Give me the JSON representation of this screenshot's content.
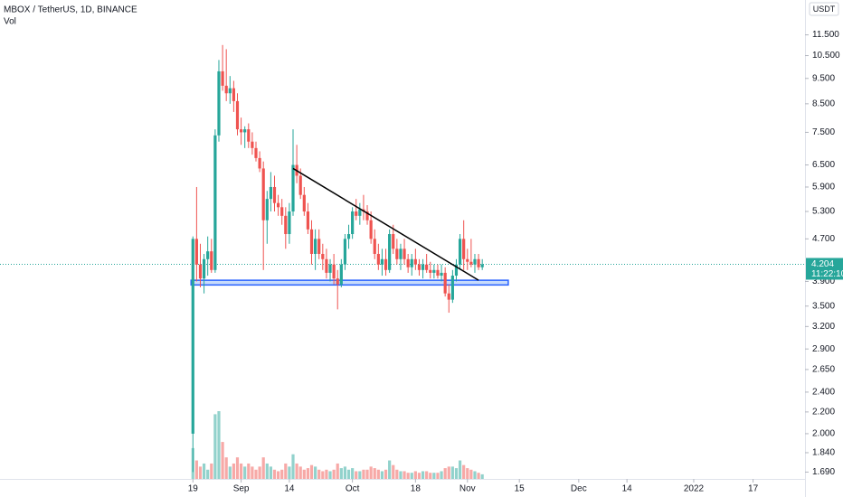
{
  "chart_data": {
    "type": "candlestick",
    "title": "MBOX / TetherUS, 1D, BINANCE",
    "volume_label": "Vol",
    "currency": "USDT",
    "log_scale": true,
    "up_color": "#26a69a",
    "down_color": "#ef5350",
    "x": [
      0,
      1,
      2,
      3,
      4,
      5,
      6,
      7,
      8,
      9,
      10,
      11,
      12,
      13,
      14,
      15,
      16,
      17,
      18,
      19,
      20,
      21,
      22,
      23,
      24,
      25,
      26,
      27,
      28,
      29,
      30,
      31,
      32,
      33,
      34,
      35,
      36,
      37,
      38,
      39,
      40,
      41,
      42,
      43,
      44,
      45,
      46,
      47,
      48,
      49,
      50,
      51,
      52,
      53,
      54,
      55,
      56,
      57,
      58,
      59,
      60,
      61,
      62,
      63,
      64,
      65,
      66,
      67,
      68,
      69,
      70,
      71,
      72,
      73,
      74,
      75,
      76,
      77,
      78
    ],
    "open": [
      2.0,
      4.7,
      4.2,
      3.95,
      4.3,
      4.45,
      4.1,
      7.4,
      9.8,
      9.2,
      8.9,
      9.1,
      8.6,
      7.6,
      7.5,
      7.6,
      7.2,
      7.0,
      6.7,
      6.4,
      5.1,
      5.6,
      5.9,
      5.5,
      5.4,
      5.2,
      4.8,
      5.3,
      6.5,
      6.2,
      5.7,
      5.3,
      4.9,
      4.4,
      4.7,
      4.4,
      4.3,
      4.05,
      4.2,
      3.95,
      3.85,
      4.2,
      4.7,
      4.8,
      5.3,
      5.2,
      5.35,
      5.3,
      5.1,
      4.7,
      4.4,
      4.2,
      4.3,
      4.1,
      4.8,
      4.5,
      4.3,
      4.5,
      4.3,
      4.15,
      4.3,
      4.2,
      4.1,
      4.2,
      4.1,
      4.05,
      4.1,
      4.0,
      4.05,
      3.7,
      3.6,
      4.0,
      4.2,
      4.7,
      4.3,
      4.25,
      4.2,
      4.3,
      4.15
    ],
    "high": [
      4.75,
      5.9,
      4.6,
      4.4,
      4.75,
      4.7,
      7.6,
      10.3,
      11.0,
      10.8,
      9.6,
      9.4,
      8.9,
      8.0,
      7.7,
      7.8,
      7.5,
      7.2,
      6.9,
      6.6,
      5.8,
      6.3,
      6.2,
      5.7,
      5.6,
      5.4,
      5.5,
      7.6,
      7.1,
      6.4,
      5.9,
      5.5,
      5.1,
      4.9,
      4.9,
      4.6,
      4.5,
      4.3,
      4.4,
      4.1,
      4.3,
      4.8,
      5.0,
      5.4,
      5.6,
      5.5,
      5.7,
      5.45,
      5.3,
      4.9,
      4.6,
      4.5,
      4.5,
      4.9,
      5.0,
      4.7,
      4.6,
      4.7,
      4.4,
      4.4,
      4.5,
      4.3,
      4.3,
      4.4,
      4.25,
      4.2,
      4.2,
      4.2,
      4.15,
      3.85,
      4.1,
      4.3,
      4.8,
      5.1,
      4.5,
      4.7,
      4.4,
      4.4,
      4.3
    ],
    "low": [
      1.69,
      3.9,
      3.8,
      3.7,
      4.0,
      4.05,
      4.05,
      7.2,
      9.0,
      8.6,
      8.5,
      8.2,
      7.4,
      7.1,
      7.0,
      7.0,
      6.8,
      6.6,
      6.3,
      4.1,
      4.6,
      5.3,
      5.3,
      5.2,
      5.0,
      4.5,
      4.6,
      5.2,
      6.0,
      5.6,
      5.2,
      4.8,
      4.2,
      4.1,
      4.3,
      4.1,
      3.95,
      3.9,
      3.85,
      3.45,
      3.8,
      4.1,
      4.5,
      4.7,
      5.1,
      5.0,
      5.1,
      5.0,
      4.6,
      4.3,
      4.1,
      4.0,
      4.0,
      4.05,
      4.4,
      4.2,
      4.1,
      4.2,
      4.05,
      4.0,
      4.1,
      4.0,
      3.95,
      4.05,
      3.95,
      3.95,
      3.95,
      3.9,
      3.65,
      3.4,
      3.55,
      3.9,
      4.1,
      4.1,
      4.1,
      4.15,
      4.05,
      4.1,
      4.1
    ],
    "close": [
      4.7,
      4.2,
      3.95,
      4.3,
      4.45,
      4.1,
      7.4,
      9.8,
      9.2,
      8.9,
      9.1,
      8.6,
      7.6,
      7.5,
      7.6,
      7.2,
      7.0,
      6.7,
      6.4,
      5.1,
      5.6,
      5.9,
      5.5,
      5.4,
      5.2,
      4.8,
      5.3,
      6.5,
      6.2,
      5.7,
      5.3,
      4.9,
      4.4,
      4.7,
      4.4,
      4.3,
      4.05,
      4.2,
      3.95,
      3.85,
      4.2,
      4.7,
      4.8,
      5.3,
      5.2,
      5.35,
      5.3,
      5.1,
      4.7,
      4.4,
      4.2,
      4.3,
      4.1,
      4.8,
      4.5,
      4.3,
      4.5,
      4.3,
      4.15,
      4.3,
      4.2,
      4.1,
      4.2,
      4.1,
      4.05,
      4.1,
      4.0,
      4.05,
      3.7,
      3.6,
      4.0,
      4.2,
      4.7,
      4.3,
      4.25,
      4.2,
      4.3,
      4.15,
      4.204
    ],
    "volume": [
      20,
      12,
      8,
      10,
      6,
      10,
      42,
      44,
      24,
      14,
      8,
      10,
      14,
      10,
      8,
      10,
      8,
      6,
      8,
      14,
      10,
      8,
      6,
      5,
      6,
      10,
      8,
      16,
      10,
      8,
      6,
      7,
      9,
      8,
      6,
      5,
      6,
      5,
      6,
      10,
      7,
      8,
      6,
      7,
      5,
      5,
      6,
      6,
      8,
      7,
      6,
      5,
      6,
      12,
      9,
      6,
      5,
      5,
      4,
      4,
      5,
      4,
      5,
      5,
      4,
      4,
      4,
      5,
      7,
      8,
      8,
      7,
      12,
      9,
      7,
      6,
      5,
      4,
      3
    ],
    "ylim": [
      1.64,
      13.4
    ],
    "yticks": [
      {
        "value": 11.5,
        "label": "11.500"
      },
      {
        "value": 10.5,
        "label": "10.500"
      },
      {
        "value": 9.5,
        "label": "9.500"
      },
      {
        "value": 8.5,
        "label": "8.500"
      },
      {
        "value": 7.5,
        "label": "7.500"
      },
      {
        "value": 6.5,
        "label": "6.500"
      },
      {
        "value": 5.9,
        "label": "5.900"
      },
      {
        "value": 5.3,
        "label": "5.300"
      },
      {
        "value": 4.7,
        "label": "4.700"
      },
      {
        "value": 3.9,
        "label": "3.900"
      },
      {
        "value": 3.5,
        "label": "3.500"
      },
      {
        "value": 3.2,
        "label": "3.200"
      },
      {
        "value": 2.9,
        "label": "2.900"
      },
      {
        "value": 2.65,
        "label": "2.650"
      },
      {
        "value": 2.4,
        "label": "2.400"
      },
      {
        "value": 2.2,
        "label": "2.200"
      },
      {
        "value": 2.0,
        "label": "2.000"
      },
      {
        "value": 1.84,
        "label": "1.840"
      },
      {
        "value": 1.69,
        "label": "1.690"
      }
    ],
    "xlim": [
      -52,
      165
    ],
    "xticks": [
      {
        "value": 0,
        "label": "19"
      },
      {
        "value": 13,
        "label": "Sep"
      },
      {
        "value": 26,
        "label": "14"
      },
      {
        "value": 43,
        "label": "Oct"
      },
      {
        "value": 60,
        "label": "18"
      },
      {
        "value": 74,
        "label": "Nov"
      },
      {
        "value": 88,
        "label": "15"
      },
      {
        "value": 104,
        "label": "Dec"
      },
      {
        "value": 117,
        "label": "14"
      },
      {
        "value": 135,
        "label": "2022"
      },
      {
        "value": 151,
        "label": "17"
      }
    ],
    "last_price": 4.204,
    "countdown": "11:22:10",
    "trendline": {
      "x": [
        27,
        77
      ],
      "y": [
        6.4,
        3.92
      ]
    },
    "support_zone": {
      "x": [
        -0.5,
        85
      ],
      "y": [
        3.84,
        3.92
      ]
    }
  }
}
